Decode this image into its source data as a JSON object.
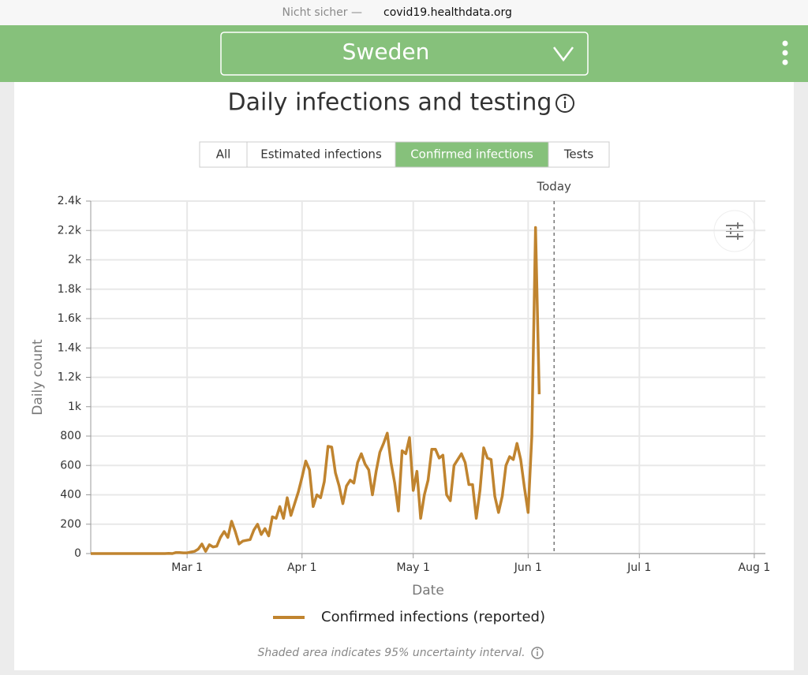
{
  "browser": {
    "security": "Nicht sicher —",
    "url": "covid19.healthdata.org"
  },
  "header": {
    "location": "Sweden"
  },
  "tabs": [
    {
      "label": "All",
      "active": false
    },
    {
      "label": "Estimated infections",
      "active": false
    },
    {
      "label": "Confirmed infections",
      "active": true
    },
    {
      "label": "Tests",
      "active": false
    }
  ],
  "footnote": "Shaded area indicates 95% uncertainty interval.",
  "chart_data": {
    "type": "line",
    "title": "Daily infections and testing",
    "x_label": "Date",
    "y_label": "Daily count",
    "xlim": [
      35,
      217
    ],
    "xticks": [
      {
        "value": 61,
        "label": "Mar 1"
      },
      {
        "value": 92,
        "label": "Apr 1"
      },
      {
        "value": 122,
        "label": "May 1"
      },
      {
        "value": 153,
        "label": "Jun 1"
      },
      {
        "value": 183,
        "label": "Jul 1"
      },
      {
        "value": 214,
        "label": "Aug 1"
      }
    ],
    "ylim": [
      0,
      2400
    ],
    "yticks": [
      0,
      200,
      400,
      600,
      800,
      {
        "value": 1000,
        "label": "1k"
      },
      {
        "value": 1200,
        "label": "1.2k"
      },
      {
        "value": 1400,
        "label": "1.4k"
      },
      {
        "value": 1600,
        "label": "1.6k"
      },
      {
        "value": 1800,
        "label": "1.8k"
      },
      {
        "value": 2000,
        "label": "2k"
      },
      {
        "value": 2200,
        "label": "2.2k"
      },
      {
        "value": 2400,
        "label": "2.4k"
      }
    ],
    "grid": true,
    "annotations": [
      {
        "label": "Today",
        "x": 160
      }
    ],
    "series": [
      {
        "name": "Confirmed infections (reported)",
        "color": "#c0842f",
        "x": [
          35,
          36,
          37,
          38,
          39,
          40,
          41,
          42,
          43,
          44,
          45,
          46,
          47,
          48,
          49,
          50,
          51,
          52,
          53,
          54,
          55,
          56,
          57,
          58,
          59,
          60,
          61,
          62,
          63,
          64,
          65,
          66,
          67,
          68,
          69,
          70,
          71,
          72,
          73,
          74,
          75,
          76,
          77,
          78,
          79,
          80,
          81,
          82,
          83,
          84,
          85,
          86,
          87,
          88,
          89,
          90,
          91,
          92,
          93,
          94,
          95,
          96,
          97,
          98,
          99,
          100,
          101,
          102,
          103,
          104,
          105,
          106,
          107,
          108,
          109,
          110,
          111,
          112,
          113,
          114,
          115,
          116,
          117,
          118,
          119,
          120,
          121,
          122,
          123,
          124,
          125,
          126,
          127,
          128,
          129,
          130,
          131,
          132,
          133,
          134,
          135,
          136,
          137,
          138,
          139,
          140,
          141,
          142,
          143,
          144,
          145,
          146,
          147,
          148,
          149,
          150,
          151,
          152,
          153,
          154,
          155,
          156
        ],
        "values": [
          0,
          0,
          0,
          0,
          0,
          0,
          0,
          0,
          0,
          0,
          0,
          0,
          0,
          0,
          0,
          0,
          0,
          0,
          0,
          0,
          0,
          1,
          0,
          7,
          7,
          5,
          5,
          10,
          15,
          30,
          65,
          15,
          60,
          45,
          50,
          110,
          150,
          110,
          220,
          150,
          65,
          85,
          90,
          95,
          160,
          200,
          130,
          170,
          120,
          250,
          240,
          320,
          240,
          380,
          260,
          340,
          420,
          520,
          630,
          570,
          320,
          400,
          380,
          490,
          730,
          725,
          550,
          460,
          340,
          460,
          500,
          480,
          620,
          680,
          610,
          570,
          400,
          560,
          690,
          750,
          820,
          620,
          480,
          290,
          700,
          680,
          790,
          430,
          560,
          240,
          400,
          500,
          710,
          710,
          650,
          670,
          400,
          360,
          600,
          640,
          680,
          620,
          470,
          470,
          240,
          430,
          720,
          650,
          640,
          390,
          280,
          390,
          600,
          660,
          640,
          750,
          640,
          450,
          280,
          800,
          2220,
          1085
        ]
      }
    ]
  }
}
